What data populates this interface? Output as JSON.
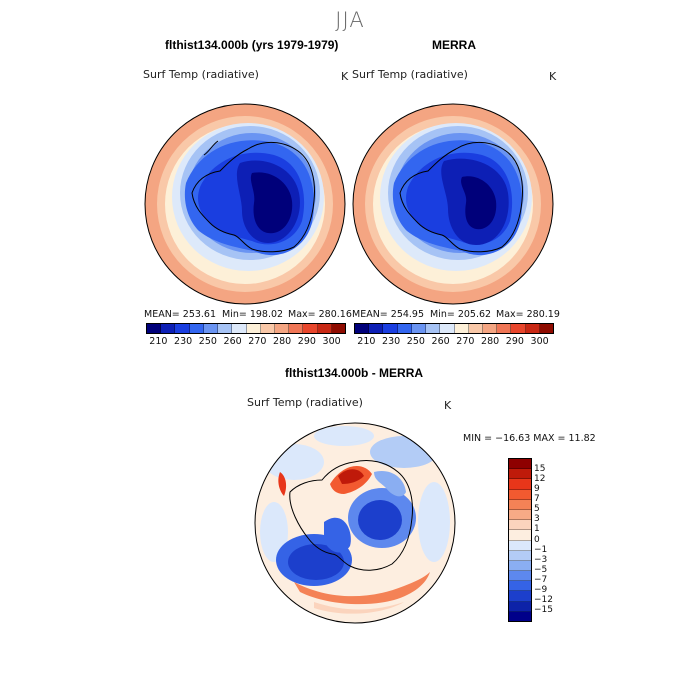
{
  "season": "JJA",
  "panel1": {
    "title": "flthist134.000b (yrs 1979-1979)",
    "field": "Surf Temp (radiative)",
    "unit": "K",
    "stats": {
      "mean": "MEAN= 253.61",
      "min": "Min= 198.02",
      "max": "Max= 280.16"
    }
  },
  "panel2": {
    "title": "MERRA",
    "field": "Surf Temp (radiative)",
    "unit": "K",
    "stats": {
      "mean": "MEAN= 254.95",
      "min": "Min= 205.62",
      "max": "Max= 280.19"
    }
  },
  "panel3": {
    "title": "flthist134.000b - MERRA",
    "field": "Surf Temp (radiative)",
    "unit": "K",
    "minmax": "MIN = −16.63 MAX =  11.82"
  },
  "abs_colorbar": {
    "tick_labels": [
      "210",
      "230",
      "250",
      "260",
      "270",
      "280",
      "290",
      "300"
    ],
    "colors": [
      "#00007a",
      "#0d1fb5",
      "#1a3ee0",
      "#3366f0",
      "#6a94f2",
      "#a6c3f5",
      "#dde9fa",
      "#fdf0d8",
      "#f9c8a8",
      "#f4a582",
      "#f07656",
      "#e8462c",
      "#c82814",
      "#8e0b00"
    ]
  },
  "diff_colorbar": {
    "tick_labels": [
      "15",
      "12",
      "9",
      "7",
      "5",
      "3",
      "1",
      "0",
      "−1",
      "−3",
      "−5",
      "−7",
      "−9",
      "−12",
      "−15"
    ],
    "colors": [
      "#8e0000",
      "#bf1a0a",
      "#e8361a",
      "#f25a30",
      "#f48256",
      "#f7aa86",
      "#fbd4bd",
      "#fdeee0",
      "#dbe8fb",
      "#b3ccf6",
      "#8aaef2",
      "#5d88ee",
      "#3563e6",
      "#1c3fcc",
      "#0d22a8",
      "#00008a"
    ]
  }
}
